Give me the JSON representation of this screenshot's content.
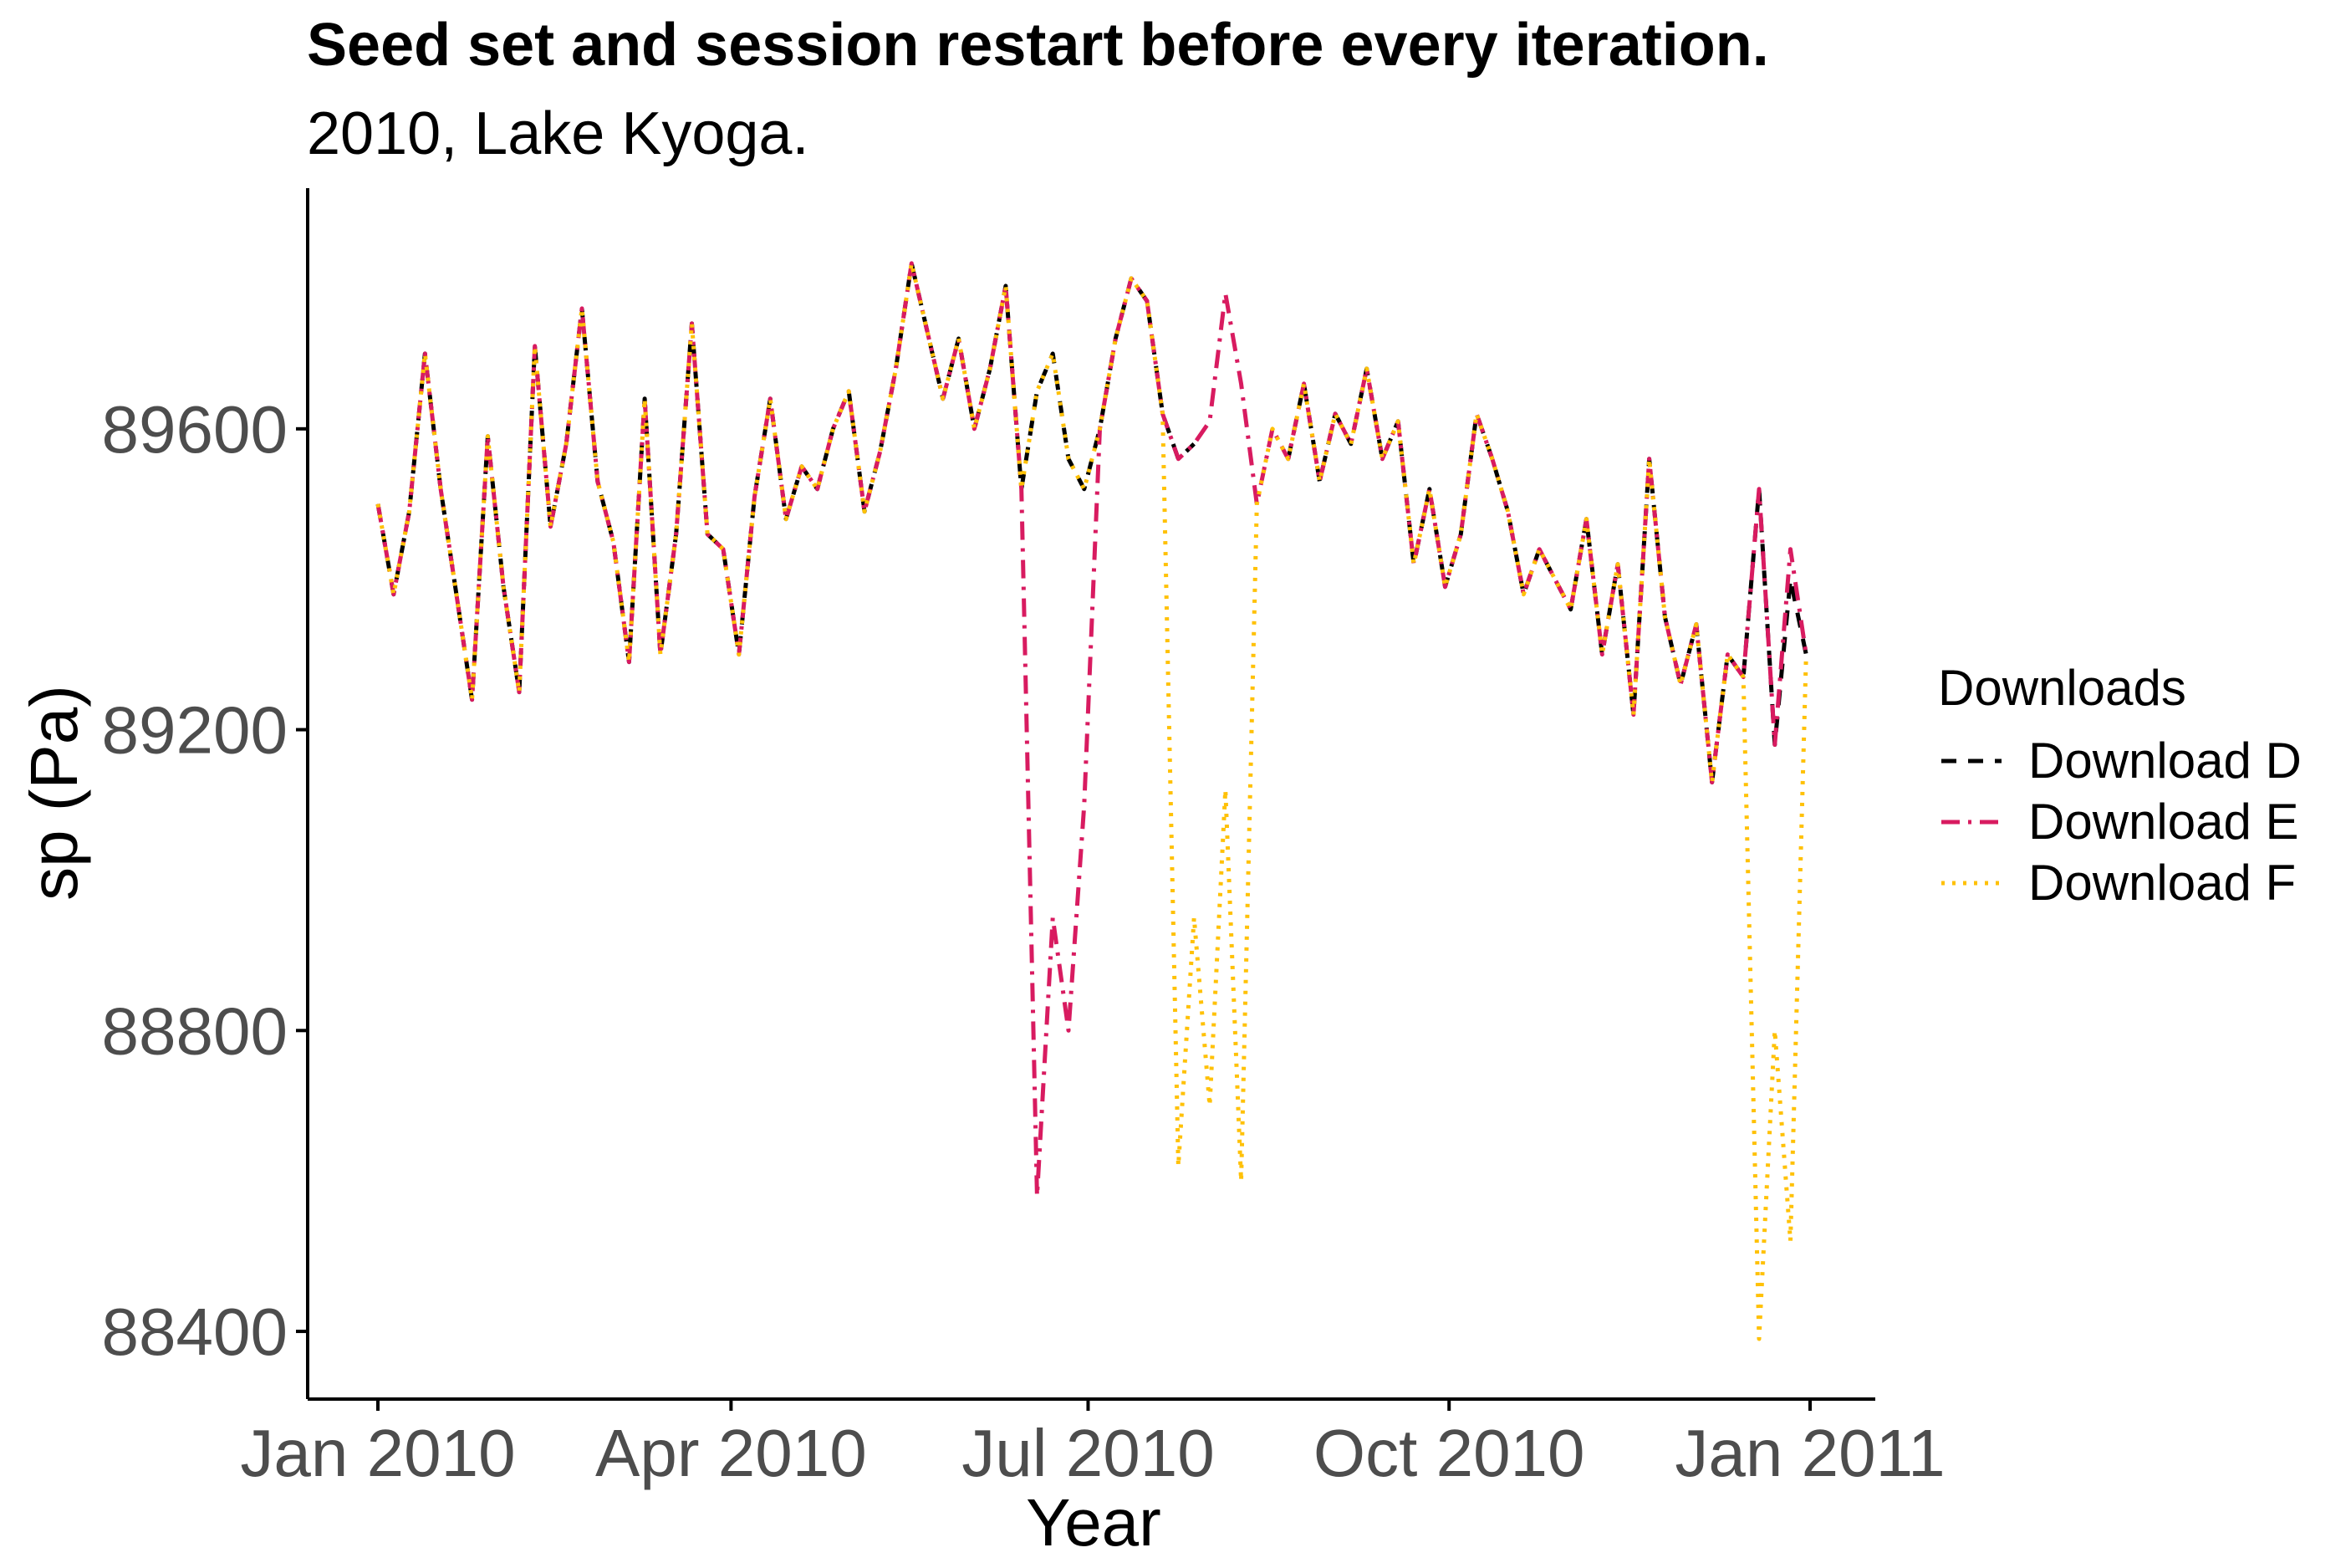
{
  "chart_data": {
    "type": "line",
    "title": "Seed set and session restart before every iteration.",
    "subtitle": "2010, Lake Kyoga.",
    "xlabel": "Year",
    "ylabel": "sp (Pa)",
    "xlim": [
      "2010-01-01",
      "2011-01-01"
    ],
    "ylim": [
      88310,
      89920
    ],
    "x_ticks": [
      "2010-01-01",
      "2010-04-01",
      "2010-07-01",
      "2010-10-01",
      "2011-01-01"
    ],
    "x_tick_labels": [
      "Jan 2010",
      "Apr 2010",
      "Jul 2010",
      "Oct 2010",
      "Jan 2011"
    ],
    "y_ticks": [
      88400,
      88800,
      89200,
      89600
    ],
    "y_tick_labels": [
      "88400",
      "88800",
      "89200",
      "89600"
    ],
    "legend_title": "Downloads",
    "legend_position": "right",
    "grid": false,
    "x": [
      "2010-01-01",
      "2010-01-05",
      "2010-01-09",
      "2010-01-13",
      "2010-01-17",
      "2010-01-21",
      "2010-01-25",
      "2010-01-29",
      "2010-02-02",
      "2010-02-06",
      "2010-02-10",
      "2010-02-14",
      "2010-02-18",
      "2010-02-22",
      "2010-02-26",
      "2010-03-02",
      "2010-03-06",
      "2010-03-10",
      "2010-03-14",
      "2010-03-18",
      "2010-03-22",
      "2010-03-26",
      "2010-03-30",
      "2010-04-03",
      "2010-04-07",
      "2010-04-11",
      "2010-04-15",
      "2010-04-19",
      "2010-04-23",
      "2010-04-27",
      "2010-05-01",
      "2010-05-05",
      "2010-05-09",
      "2010-05-13",
      "2010-05-17",
      "2010-05-21",
      "2010-05-25",
      "2010-05-29",
      "2010-06-02",
      "2010-06-06",
      "2010-06-10",
      "2010-06-14",
      "2010-06-18",
      "2010-06-22",
      "2010-06-26",
      "2010-06-30",
      "2010-07-04",
      "2010-07-08",
      "2010-07-12",
      "2010-07-16",
      "2010-07-20",
      "2010-07-24",
      "2010-07-28",
      "2010-08-01",
      "2010-08-05",
      "2010-08-09",
      "2010-08-13",
      "2010-08-17",
      "2010-08-21",
      "2010-08-25",
      "2010-08-29",
      "2010-09-02",
      "2010-09-06",
      "2010-09-10",
      "2010-09-14",
      "2010-09-18",
      "2010-09-22",
      "2010-09-26",
      "2010-09-30",
      "2010-10-04",
      "2010-10-08",
      "2010-10-12",
      "2010-10-16",
      "2010-10-20",
      "2010-10-24",
      "2010-10-28",
      "2010-11-01",
      "2010-11-05",
      "2010-11-09",
      "2010-11-13",
      "2010-11-17",
      "2010-11-21",
      "2010-11-25",
      "2010-11-29",
      "2010-12-03",
      "2010-12-07",
      "2010-12-11",
      "2010-12-15",
      "2010-12-19",
      "2010-12-23",
      "2010-12-27",
      "2010-12-31"
    ],
    "series": [
      {
        "name": "Download D",
        "color": "#000000",
        "dash": "dashed",
        "values": [
          89500,
          89380,
          89490,
          89700,
          89520,
          89380,
          89240,
          89590,
          89390,
          89250,
          89710,
          89470,
          89580,
          89760,
          89530,
          89450,
          89290,
          89640,
          89300,
          89460,
          89740,
          89460,
          89440,
          89300,
          89510,
          89640,
          89480,
          89550,
          89520,
          89600,
          89650,
          89490,
          89570,
          89680,
          89820,
          89730,
          89640,
          89720,
          89600,
          89680,
          89790,
          89520,
          89650,
          89700,
          89560,
          89520,
          89600,
          89720,
          89800,
          89770,
          89620,
          89560,
          89580,
          89610,
          89780,
          89660,
          89500,
          89600,
          89560,
          89660,
          89530,
          89620,
          89580,
          89680,
          89560,
          89610,
          89420,
          89520,
          89390,
          89460,
          89620,
          89560,
          89490,
          89380,
          89440,
          89400,
          89360,
          89480,
          89300,
          89420,
          89220,
          89560,
          89350,
          89260,
          89340,
          89130,
          89300,
          89270,
          89520,
          89180,
          89400,
          89300
        ],
        "missing_ranges": [
          [
            "2010-07-30",
            "2010-08-17"
          ]
        ]
      },
      {
        "name": "Download E",
        "color": "#d81b60",
        "dash": "dashdot",
        "values": [
          89500,
          89380,
          89490,
          89700,
          89520,
          89380,
          89240,
          89590,
          89390,
          89250,
          89710,
          89470,
          89580,
          89760,
          89530,
          89450,
          89290,
          89640,
          89300,
          89460,
          89740,
          89460,
          89440,
          89300,
          89510,
          89640,
          89480,
          89550,
          89520,
          89600,
          89650,
          89490,
          89570,
          89680,
          89820,
          89730,
          89640,
          89720,
          89600,
          89680,
          89790,
          89520,
          88580,
          88950,
          88800,
          89100,
          89600,
          89720,
          89800,
          89770,
          89620,
          89560,
          89580,
          89610,
          89780,
          89660,
          89500,
          89600,
          89560,
          89660,
          89530,
          89620,
          89580,
          89680,
          89560,
          89610,
          89420,
          89520,
          89390,
          89460,
          89620,
          89560,
          89490,
          89380,
          89440,
          89400,
          89360,
          89480,
          89300,
          89420,
          89220,
          89560,
          89350,
          89260,
          89340,
          89130,
          89300,
          89270,
          89520,
          89180,
          89440,
          89300
        ]
      },
      {
        "name": "Download F",
        "color": "#ffc107",
        "dash": "dotted",
        "values": [
          89500,
          89380,
          89490,
          89700,
          89520,
          89380,
          89240,
          89590,
          89390,
          89250,
          89710,
          89470,
          89580,
          89760,
          89530,
          89450,
          89290,
          89640,
          89300,
          89460,
          89740,
          89460,
          89440,
          89300,
          89510,
          89640,
          89480,
          89550,
          89520,
          89600,
          89650,
          89490,
          89570,
          89680,
          89820,
          89730,
          89640,
          89720,
          89600,
          89680,
          89790,
          89520,
          89650,
          89700,
          89560,
          89520,
          89600,
          89720,
          89800,
          89770,
          89620,
          88620,
          88950,
          88700,
          89120,
          88600,
          89500,
          89600,
          89560,
          89660,
          89530,
          89620,
          89580,
          89680,
          89560,
          89610,
          89420,
          89520,
          89390,
          89460,
          89620,
          89560,
          89490,
          89380,
          89440,
          89400,
          89360,
          89480,
          89300,
          89420,
          89220,
          89560,
          89350,
          89260,
          89340,
          89130,
          89300,
          89270,
          88390,
          88800,
          88520,
          89300
        ]
      }
    ]
  }
}
